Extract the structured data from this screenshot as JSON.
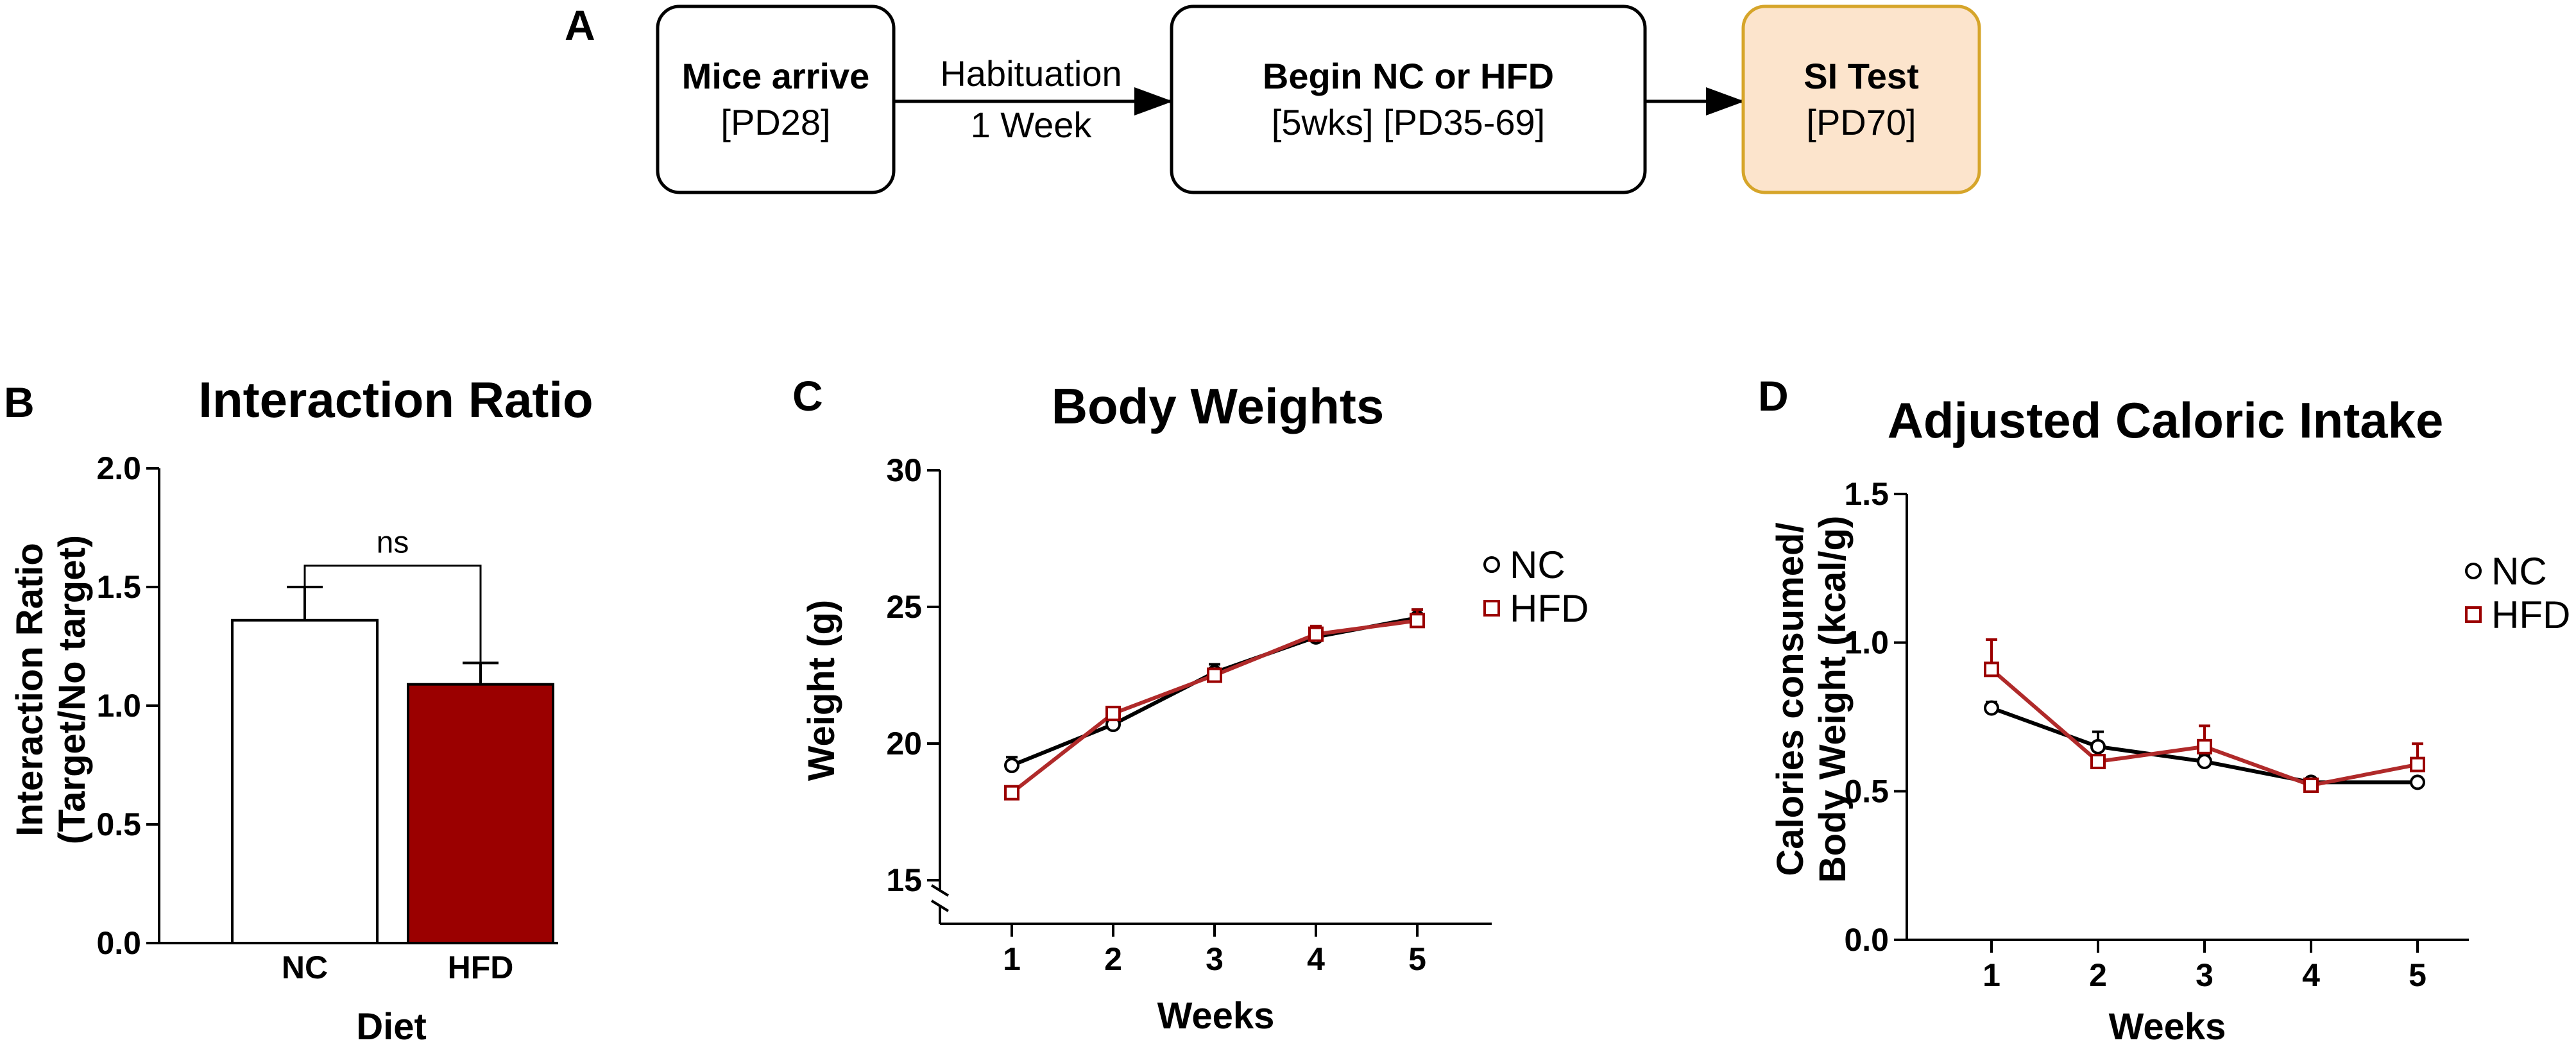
{
  "panel_a": {
    "letter": "A",
    "steps": [
      {
        "title": "Mice arrive",
        "detail": "[PD28]"
      },
      {
        "title": "Begin NC or HFD",
        "detail": "[5wks] [PD35-69]"
      },
      {
        "title": "SI Test",
        "detail": "[PD70]"
      }
    ],
    "arrow_label_1": "Habituation",
    "arrow_label_2": "1 Week",
    "colors": {
      "highlight_fill": "#FCE4CC",
      "highlight_border": "#D6A52A"
    }
  },
  "colors": {
    "nc": "#000000",
    "hfd": "#9B0000",
    "hfd_line": "#B02A2A"
  },
  "chart_data": [
    {
      "id": "B",
      "letter": "B",
      "type": "bar",
      "title": "Interaction Ratio",
      "xlabel": "Diet",
      "ylabel": [
        "Interaction Ratio",
        "(Target/No target)"
      ],
      "categories": [
        "NC",
        "HFD"
      ],
      "values": [
        1.36,
        1.09
      ],
      "errors": [
        0.14,
        0.09
      ],
      "ylim": [
        0,
        2.0
      ],
      "yticks": [
        0,
        0.5,
        1.0,
        1.5,
        2.0
      ],
      "ytick_labels": [
        "0.0",
        "0.5",
        "1.0",
        "1.5",
        "2.0"
      ],
      "bar_fills": [
        "#FFFFFF",
        "#9B0000"
      ],
      "significance": "ns"
    },
    {
      "id": "C",
      "letter": "C",
      "type": "line",
      "title": "Body Weights",
      "xlabel": "Weeks",
      "ylabel": "Weight (g)",
      "x": [
        1,
        2,
        3,
        4,
        5
      ],
      "ylim": [
        15,
        30
      ],
      "axis_break": true,
      "yticks": [
        15,
        20,
        25,
        30
      ],
      "ytick_labels": [
        "15",
        "20",
        "25",
        "30"
      ],
      "series": [
        {
          "name": "NC",
          "values": [
            19.2,
            20.7,
            22.6,
            23.9,
            24.6
          ],
          "errors": [
            0.3,
            0.2,
            0.3,
            0.3,
            0.3
          ],
          "marker": "circle"
        },
        {
          "name": "HFD",
          "values": [
            18.2,
            21.1,
            22.5,
            24.0,
            24.5
          ],
          "errors": [
            0.2,
            0.2,
            0.2,
            0.3,
            0.4
          ],
          "marker": "square"
        }
      ],
      "legend_position": "top-right"
    },
    {
      "id": "D",
      "letter": "D",
      "type": "line",
      "title": "Adjusted Caloric Intake",
      "xlabel": "Weeks",
      "ylabel": [
        "Calories consumed/",
        "Body Weight (kcal/g)"
      ],
      "x": [
        1,
        2,
        3,
        4,
        5
      ],
      "ylim": [
        0,
        1.5
      ],
      "yticks": [
        0,
        0.5,
        1.0,
        1.5
      ],
      "ytick_labels": [
        "0.0",
        "0.5",
        "1.0",
        "1.5"
      ],
      "series": [
        {
          "name": "NC",
          "values": [
            0.78,
            0.65,
            0.6,
            0.53,
            0.53
          ],
          "errors": [
            0.02,
            0.05,
            0.02,
            0.01,
            0.01
          ],
          "marker": "circle"
        },
        {
          "name": "HFD",
          "values": [
            0.91,
            0.6,
            0.65,
            0.52,
            0.59
          ],
          "errors": [
            0.1,
            0.02,
            0.07,
            0.02,
            0.07
          ],
          "marker": "square"
        }
      ],
      "legend_position": "top-right"
    }
  ]
}
